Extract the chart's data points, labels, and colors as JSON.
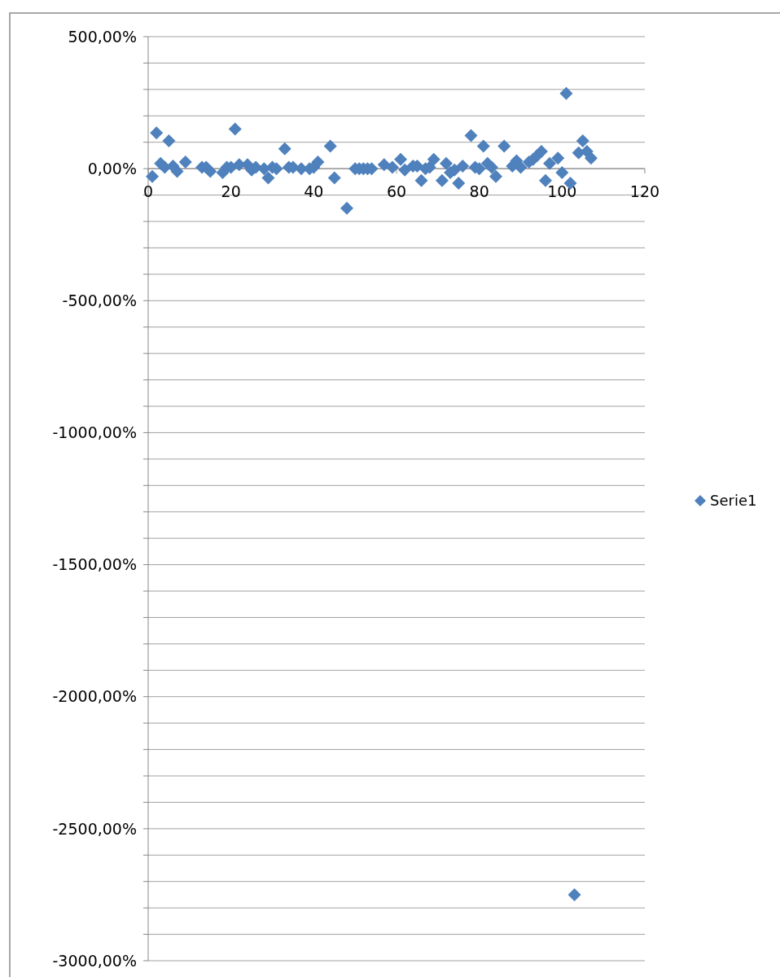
{
  "chart_data": {
    "type": "scatter",
    "marker": "diamond",
    "grid": "y",
    "legend": "right",
    "xlim": [
      0,
      120
    ],
    "xticks": [
      0,
      20,
      40,
      60,
      80,
      100,
      120
    ],
    "ylim": [
      -3000,
      500
    ],
    "yticks": [
      {
        "value": 500,
        "label": "500,00%"
      },
      {
        "value": 400,
        "label": null
      },
      {
        "value": 300,
        "label": null
      },
      {
        "value": 200,
        "label": null
      },
      {
        "value": 100,
        "label": null
      },
      {
        "value": 0,
        "label": "0,00%"
      },
      {
        "value": -100,
        "label": null
      },
      {
        "value": -200,
        "label": null
      },
      {
        "value": -300,
        "label": null
      },
      {
        "value": -400,
        "label": null
      },
      {
        "value": -500,
        "label": "-500,00%"
      },
      {
        "value": -600,
        "label": null
      },
      {
        "value": -700,
        "label": null
      },
      {
        "value": -800,
        "label": null
      },
      {
        "value": -900,
        "label": null
      },
      {
        "value": -1000,
        "label": "-1000,00%"
      },
      {
        "value": -1100,
        "label": null
      },
      {
        "value": -1200,
        "label": null
      },
      {
        "value": -1300,
        "label": null
      },
      {
        "value": -1400,
        "label": null
      },
      {
        "value": -1500,
        "label": "-1500,00%"
      },
      {
        "value": -1600,
        "label": null
      },
      {
        "value": -1700,
        "label": null
      },
      {
        "value": -1800,
        "label": null
      },
      {
        "value": -1900,
        "label": null
      },
      {
        "value": -2000,
        "label": "-2000,00%"
      },
      {
        "value": -2100,
        "label": null
      },
      {
        "value": -2200,
        "label": null
      },
      {
        "value": -2300,
        "label": null
      },
      {
        "value": -2400,
        "label": null
      },
      {
        "value": -2500,
        "label": "-2500,00%"
      },
      {
        "value": -2600,
        "label": null
      },
      {
        "value": -2700,
        "label": null
      },
      {
        "value": -2800,
        "label": null
      },
      {
        "value": -2900,
        "label": null
      },
      {
        "value": -3000,
        "label": "-3000,00%"
      }
    ],
    "series": [
      {
        "name": "Serie1",
        "color": "#4f81bd",
        "x": [
          1,
          2,
          3,
          4,
          5,
          6,
          7,
          9,
          13,
          14,
          15,
          18,
          19,
          20,
          21,
          22,
          24,
          25,
          26,
          28,
          29,
          30,
          31,
          33,
          34,
          35,
          37,
          39,
          40,
          41,
          44,
          45,
          48,
          50,
          51,
          52,
          53,
          54,
          57,
          59,
          61,
          62,
          64,
          65,
          66,
          67,
          68,
          69,
          71,
          72,
          73,
          74,
          75,
          76,
          78,
          79,
          80,
          81,
          82,
          83,
          84,
          86,
          88,
          89,
          90,
          92,
          93,
          94,
          95,
          96,
          97,
          99,
          100,
          101,
          102,
          103,
          104,
          105,
          106,
          107
        ],
        "values": [
          -30,
          135,
          20,
          5,
          105,
          10,
          -10,
          25,
          5,
          5,
          -10,
          -15,
          5,
          5,
          150,
          15,
          15,
          -5,
          5,
          0,
          -35,
          5,
          0,
          75,
          5,
          5,
          0,
          0,
          5,
          25,
          85,
          -35,
          -150,
          0,
          0,
          0,
          0,
          0,
          15,
          5,
          35,
          -5,
          10,
          10,
          -45,
          0,
          5,
          35,
          -45,
          20,
          -15,
          -5,
          -55,
          10,
          125,
          5,
          0,
          85,
          20,
          5,
          -30,
          85,
          10,
          30,
          5,
          25,
          35,
          50,
          65,
          -45,
          20,
          40,
          -15,
          285,
          -55,
          -2750,
          60,
          105,
          65,
          40
        ]
      }
    ]
  }
}
